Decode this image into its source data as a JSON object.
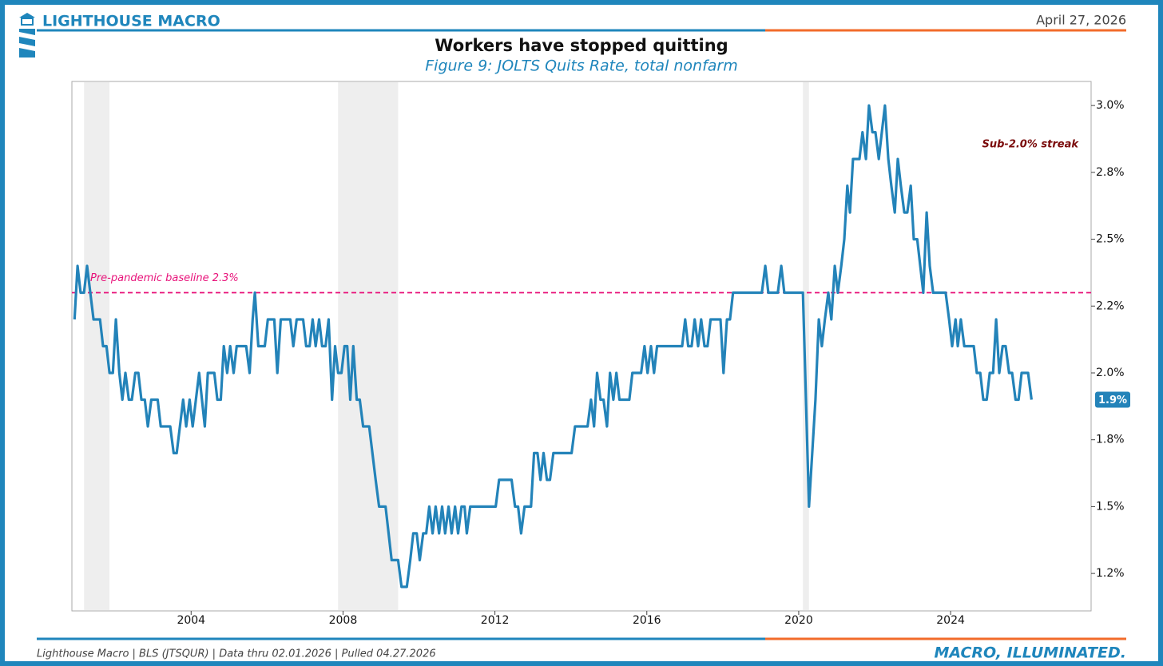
{
  "header": {
    "brand": "LIGHTHOUSE MACRO",
    "date": "April 27, 2026"
  },
  "footer": {
    "source": "Lighthouse Macro | BLS (JTSQUR) | Data thru 02.01.2026 | Pulled 04.27.2026",
    "tagline": "MACRO, ILLUMINATED."
  },
  "chart_data": {
    "type": "line",
    "title": "Workers have stopped quitting",
    "subtitle": "Figure 9: JOLTS Quits Rate, total nonfarm",
    "color": "#2383b9",
    "x": [
      2000.93,
      2001.01,
      2001.09,
      2001.18,
      2001.26,
      2001.43,
      2001.6,
      2001.68,
      2001.77,
      2001.85,
      2001.94,
      2002.02,
      2002.11,
      2002.19,
      2002.27,
      2002.36,
      2002.44,
      2002.53,
      2002.61,
      2002.69,
      2002.78,
      2002.86,
      2002.95,
      2003.12,
      2003.2,
      2003.45,
      2003.54,
      2003.62,
      2003.79,
      2003.87,
      2003.96,
      2004.04,
      2004.21,
      2004.36,
      2004.44,
      2004.61,
      2004.69,
      2004.78,
      2004.86,
      2004.95,
      2005.03,
      2005.12,
      2005.2,
      2005.45,
      2005.54,
      2005.62,
      2005.68,
      2005.77,
      2005.94,
      2006.02,
      2006.19,
      2006.27,
      2006.36,
      2006.61,
      2006.69,
      2006.78,
      2006.95,
      2007.03,
      2007.12,
      2007.2,
      2007.28,
      2007.37,
      2007.45,
      2007.54,
      2007.62,
      2007.71,
      2007.79,
      2007.87,
      2007.96,
      2008.04,
      2008.11,
      2008.19,
      2008.27,
      2008.36,
      2008.44,
      2008.53,
      2008.69,
      2008.86,
      2008.95,
      2009.12,
      2009.28,
      2009.45,
      2009.54,
      2009.68,
      2009.77,
      2009.85,
      2009.94,
      2010.02,
      2010.11,
      2010.19,
      2010.27,
      2010.36,
      2010.44,
      2010.53,
      2010.61,
      2010.69,
      2010.78,
      2010.86,
      2010.95,
      2011.03,
      2011.12,
      2011.2,
      2011.26,
      2011.35,
      2012.02,
      2012.11,
      2012.44,
      2012.53,
      2012.61,
      2012.69,
      2012.78,
      2012.95,
      2013.03,
      2013.12,
      2013.2,
      2013.28,
      2013.37,
      2013.45,
      2013.54,
      2014.02,
      2014.11,
      2014.44,
      2014.53,
      2014.61,
      2014.69,
      2014.78,
      2014.86,
      2014.95,
      2015.03,
      2015.12,
      2015.2,
      2015.28,
      2015.54,
      2015.62,
      2015.85,
      2015.94,
      2016.02,
      2016.11,
      2016.19,
      2016.27,
      2016.93,
      2017.01,
      2017.09,
      2017.18,
      2017.26,
      2017.35,
      2017.43,
      2017.52,
      2017.6,
      2017.68,
      2017.94,
      2018.02,
      2018.11,
      2018.19,
      2018.27,
      2019.03,
      2019.12,
      2019.2,
      2019.45,
      2019.54,
      2019.62,
      2020.11,
      2020.27,
      2020.44,
      2020.53,
      2020.61,
      2020.69,
      2020.78,
      2020.86,
      2020.95,
      2021.03,
      2021.12,
      2021.2,
      2021.28,
      2021.35,
      2021.43,
      2021.6,
      2021.68,
      2021.77,
      2021.85,
      2021.94,
      2022.02,
      2022.11,
      2022.19,
      2022.27,
      2022.36,
      2022.44,
      2022.53,
      2022.61,
      2022.69,
      2022.78,
      2022.86,
      2022.95,
      2023.03,
      2023.12,
      2023.2,
      2023.28,
      2023.37,
      2023.45,
      2023.54,
      2023.87,
      2023.96,
      2024.04,
      2024.13,
      2024.19,
      2024.27,
      2024.36,
      2024.61,
      2024.69,
      2024.78,
      2024.86,
      2024.95,
      2025.03,
      2025.12,
      2025.2,
      2025.28,
      2025.37,
      2025.45,
      2025.54,
      2025.62,
      2025.71,
      2025.79,
      2025.87,
      2026.04,
      2026.13
    ],
    "values": [
      2.2,
      2.4,
      2.3,
      2.3,
      2.4,
      2.2,
      2.2,
      2.1,
      2.1,
      2.0,
      2.0,
      2.2,
      2.0,
      1.9,
      2.0,
      1.9,
      1.9,
      2.0,
      2.0,
      1.9,
      1.9,
      1.8,
      1.9,
      1.9,
      1.8,
      1.8,
      1.7,
      1.7,
      1.9,
      1.8,
      1.9,
      1.8,
      2.0,
      1.8,
      2.0,
      2.0,
      1.9,
      1.9,
      2.1,
      2.0,
      2.1,
      2.0,
      2.1,
      2.1,
      2.0,
      2.2,
      2.3,
      2.1,
      2.1,
      2.2,
      2.2,
      2.0,
      2.2,
      2.2,
      2.1,
      2.2,
      2.2,
      2.1,
      2.1,
      2.2,
      2.1,
      2.2,
      2.1,
      2.1,
      2.2,
      1.9,
      2.1,
      2.0,
      2.0,
      2.1,
      2.1,
      1.9,
      2.1,
      1.9,
      1.9,
      1.8,
      1.8,
      1.6,
      1.5,
      1.5,
      1.3,
      1.3,
      1.2,
      1.2,
      1.3,
      1.4,
      1.4,
      1.3,
      1.4,
      1.4,
      1.5,
      1.4,
      1.5,
      1.4,
      1.5,
      1.4,
      1.5,
      1.4,
      1.5,
      1.4,
      1.5,
      1.5,
      1.4,
      1.5,
      1.5,
      1.6,
      1.6,
      1.5,
      1.5,
      1.4,
      1.5,
      1.5,
      1.7,
      1.7,
      1.6,
      1.7,
      1.6,
      1.6,
      1.7,
      1.7,
      1.8,
      1.8,
      1.9,
      1.8,
      2.0,
      1.9,
      1.9,
      1.8,
      2.0,
      1.9,
      2.0,
      1.9,
      1.9,
      2.0,
      2.0,
      2.1,
      2.0,
      2.1,
      2.0,
      2.1,
      2.1,
      2.2,
      2.1,
      2.1,
      2.2,
      2.1,
      2.2,
      2.1,
      2.1,
      2.2,
      2.2,
      2.0,
      2.2,
      2.2,
      2.3,
      2.3,
      2.4,
      2.3,
      2.3,
      2.4,
      2.3,
      2.3,
      1.5,
      1.9,
      2.2,
      2.1,
      2.2,
      2.3,
      2.2,
      2.4,
      2.3,
      2.4,
      2.5,
      2.7,
      2.6,
      2.8,
      2.8,
      2.9,
      2.8,
      3.0,
      2.9,
      2.9,
      2.8,
      2.9,
      3.0,
      2.8,
      2.7,
      2.6,
      2.8,
      2.7,
      2.6,
      2.6,
      2.7,
      2.5,
      2.5,
      2.4,
      2.3,
      2.6,
      2.4,
      2.3,
      2.3,
      2.2,
      2.1,
      2.2,
      2.1,
      2.2,
      2.1,
      2.1,
      2.0,
      2.0,
      1.9,
      1.9,
      2.0,
      2.0,
      2.2,
      2.0,
      2.1,
      2.1,
      2.0,
      2.0,
      1.9,
      1.9,
      2.0,
      2.0,
      1.9
    ],
    "end_label": "1.9%",
    "xlim": [
      2000.86,
      2027.7
    ],
    "xticks": [
      2004,
      2008,
      2012,
      2016,
      2020,
      2024
    ],
    "ylim": [
      1.11,
      3.09
    ],
    "yticks": [
      {
        "value": 1.25,
        "label": "1.2%"
      },
      {
        "value": 1.5,
        "label": "1.5%"
      },
      {
        "value": 1.75,
        "label": "1.8%"
      },
      {
        "value": 2.0,
        "label": "2.0%"
      },
      {
        "value": 2.25,
        "label": "2.2%"
      },
      {
        "value": 2.5,
        "label": "2.5%"
      },
      {
        "value": 2.75,
        "label": "2.8%"
      },
      {
        "value": 3.0,
        "label": "3.0%"
      }
    ],
    "recessions": [
      [
        2001.18,
        2001.85
      ],
      [
        2007.87,
        2009.45
      ],
      [
        2020.11,
        2020.27
      ]
    ],
    "baseline": {
      "value": 2.3,
      "label": "Pre-pandemic baseline 2.3%",
      "color": "#e8127a"
    },
    "annotation": "Sub-2.0% streak"
  }
}
